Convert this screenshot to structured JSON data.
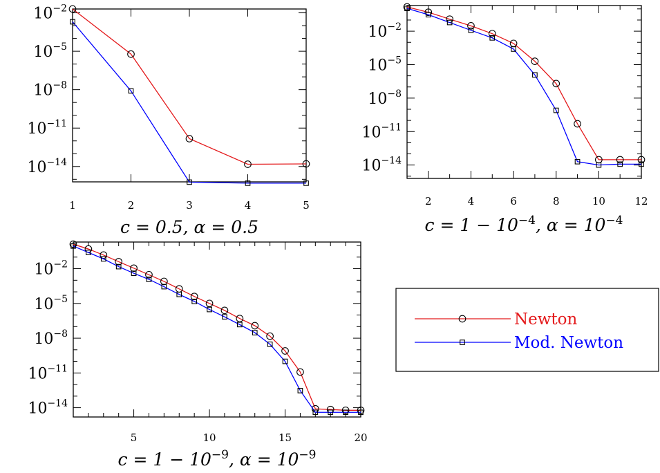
{
  "chart_data": [
    {
      "type": "line",
      "caption": "c = 0.5, α = 0.5",
      "yscale": "log",
      "xlim": [
        1,
        5
      ],
      "ylim": [
        -15.2,
        -1.7
      ],
      "x_ticks": [
        1,
        2,
        3,
        4,
        5
      ],
      "y_ticks": [
        "10^-2",
        "10^-5",
        "10^-8",
        "10^-11",
        "10^-14"
      ],
      "series": [
        {
          "name": "Newton",
          "color": "#e41a1c",
          "marker": "circle",
          "x": [
            1,
            2,
            3,
            4,
            5
          ],
          "y": [
            0.02,
            6e-06,
            1.5e-12,
            1.5e-14,
            1.6e-14
          ]
        },
        {
          "name": "Mod. Newton",
          "color": "#0000ff",
          "marker": "square",
          "x": [
            1,
            2,
            3,
            4,
            5
          ],
          "y": [
            0.002,
            8e-09,
            6e-16,
            5e-16,
            5e-16
          ]
        }
      ]
    },
    {
      "type": "line",
      "caption": "c = 1 − 10^-4, α = 10^-4",
      "yscale": "log",
      "xlim": [
        1,
        12
      ],
      "ylim": [
        -15.2,
        0.3
      ],
      "x_ticks": [
        2,
        4,
        6,
        8,
        10,
        12
      ],
      "y_ticks": [
        "10^-2",
        "10^-5",
        "10^-8",
        "10^-11",
        "10^-14"
      ],
      "series": [
        {
          "name": "Newton",
          "color": "#e41a1c",
          "marker": "circle",
          "x": [
            1,
            2,
            3,
            4,
            5,
            6,
            7,
            8,
            9,
            10,
            11,
            12
          ],
          "y": [
            1.5,
            0.5,
            0.12,
            0.03,
            0.006,
            0.0008,
            2e-05,
            2e-07,
            5e-11,
            3e-14,
            3e-14,
            3e-14
          ]
        },
        {
          "name": "Mod. Newton",
          "color": "#0000ff",
          "marker": "square",
          "x": [
            1,
            2,
            3,
            4,
            5,
            6,
            7,
            8,
            9,
            10,
            11,
            12
          ],
          "y": [
            1.1,
            0.3,
            0.06,
            0.012,
            0.0025,
            0.00025,
            1.2e-06,
            8e-10,
            2e-14,
            1e-14,
            1.2e-14,
            1.2e-14
          ]
        }
      ]
    },
    {
      "type": "line",
      "caption": "c = 1 − 10^-9, α = 10^-9",
      "yscale": "log",
      "xlim": [
        1,
        20
      ],
      "ylim": [
        -14.8,
        0.3
      ],
      "x_ticks": [
        5,
        10,
        15,
        20
      ],
      "y_ticks": [
        "10^-2",
        "10^-5",
        "10^-8",
        "10^-11",
        "10^-14"
      ],
      "series": [
        {
          "name": "Newton",
          "color": "#e41a1c",
          "marker": "circle",
          "x": [
            1,
            2,
            3,
            4,
            5,
            6,
            7,
            8,
            9,
            10,
            11,
            12,
            13,
            14,
            15,
            16,
            17,
            18,
            19,
            20
          ],
          "y": [
            1.3,
            0.5,
            0.15,
            0.04,
            0.011,
            0.003,
            0.0008,
            0.00018,
            4e-05,
            1e-05,
            2.5e-06,
            5e-07,
            1.2e-07,
            1.5e-08,
            8e-10,
            1.2e-11,
            8e-15,
            7e-15,
            6e-15,
            6e-15
          ]
        },
        {
          "name": "Mod. Newton",
          "color": "#0000ff",
          "marker": "square",
          "x": [
            1,
            2,
            3,
            4,
            5,
            6,
            7,
            8,
            9,
            10,
            11,
            12,
            13,
            14,
            15,
            16,
            17,
            18,
            19,
            20
          ],
          "y": [
            0.9,
            0.25,
            0.07,
            0.015,
            0.004,
            0.0012,
            0.00028,
            6e-05,
            1.5e-05,
            3e-06,
            7e-07,
            1.5e-07,
            3e-08,
            3e-09,
            1e-10,
            3e-13,
            4e-15,
            4e-15,
            4e-15,
            4e-15
          ]
        }
      ]
    }
  ],
  "legend": {
    "entries": [
      {
        "label": "Newton",
        "color": "#e41a1c",
        "marker": "circle"
      },
      {
        "label": "Mod. Newton",
        "color": "#0000ff",
        "marker": "square"
      }
    ]
  }
}
